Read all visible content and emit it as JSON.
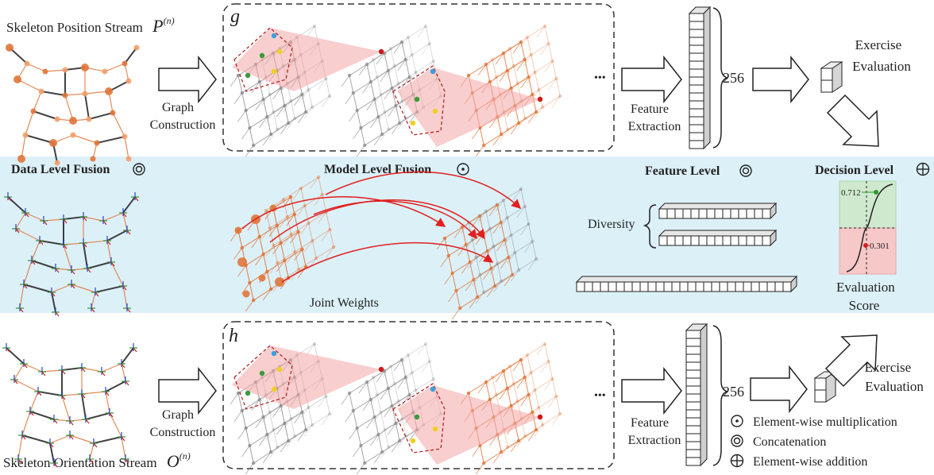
{
  "streams": {
    "position": {
      "label": "Skeleton Position Stream",
      "symbol_base": "P",
      "symbol_sup": "(n)"
    },
    "orientation": {
      "label": "Skeleton Orientation Stream",
      "symbol_base": "O",
      "symbol_sup": "(n)"
    }
  },
  "graph_construction": {
    "line1": "Graph",
    "line2": "Construction"
  },
  "graph_labels": {
    "top": "g",
    "bottom": "h"
  },
  "ellipsis": "•••",
  "feature_extraction": {
    "line1": "Feature",
    "line2": "Extraction"
  },
  "feature_dim": "256",
  "exercise_evaluation": {
    "line1": "Exercise",
    "line2": "Evaluation"
  },
  "fusion": {
    "data_level": "Data Level Fusion",
    "model_level": "Model Level Fusion",
    "feature_level": "Feature Level",
    "decision_level": "Decision Level"
  },
  "joint_weights": "Joint Weights",
  "diversity": "Diversity",
  "decision": {
    "upper_value": "0.712",
    "lower_value": "0.301",
    "score_line1": "Evaluation",
    "score_line2": "Score"
  },
  "legend": [
    {
      "symbol": "odot",
      "label": "Element-wise multiplication"
    },
    {
      "symbol": "circledcirc",
      "label": "Concatenation"
    },
    {
      "symbol": "oplus",
      "label": "Element-wise addition"
    }
  ],
  "colors": {
    "band": "#dcf0f8",
    "orange": "#e0763a",
    "gray": "#8a8a8a",
    "highlight": "#f4a6a6",
    "green_zone": "#cfe9cf",
    "red_zone": "#f6c8c8",
    "curve_arrows": "#e02020"
  }
}
